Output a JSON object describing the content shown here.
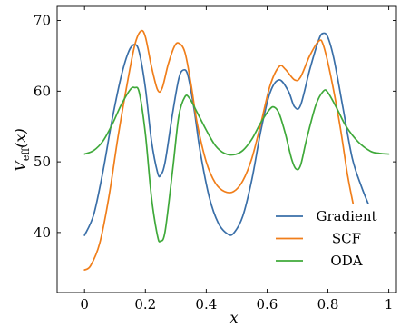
{
  "chart_data": {
    "type": "line",
    "title": "",
    "xlabel": "x",
    "ylabel": "V_eff(x)",
    "ylabel_parts": {
      "main": "V",
      "sub": "eff",
      "arg": "(x)"
    },
    "xlim": [
      -0.09,
      1.025
    ],
    "ylim": [
      31.5,
      72
    ],
    "xticks": [
      0,
      0.2,
      0.4,
      0.6,
      0.8,
      1
    ],
    "xtick_labels": [
      "0",
      "0.2",
      "0.4",
      "0.6",
      "0.8",
      "1"
    ],
    "yticks": [
      40,
      50,
      60,
      70
    ],
    "ytick_labels": [
      "40",
      "50",
      "60",
      "70"
    ],
    "grid": false,
    "legend_position": "bottom-right",
    "series": [
      {
        "name": "Gradient",
        "color": "#3a6fa8",
        "points": [
          [
            0.0,
            39.6
          ],
          [
            0.03,
            42.5
          ],
          [
            0.06,
            48.5
          ],
          [
            0.09,
            55.8
          ],
          [
            0.12,
            62.0
          ],
          [
            0.145,
            65.6
          ],
          [
            0.165,
            66.6
          ],
          [
            0.18,
            65.5
          ],
          [
            0.2,
            60.5
          ],
          [
            0.22,
            53.0
          ],
          [
            0.24,
            48.5
          ],
          [
            0.25,
            48.1
          ],
          [
            0.265,
            50.0
          ],
          [
            0.29,
            57.0
          ],
          [
            0.31,
            61.8
          ],
          [
            0.325,
            63.0
          ],
          [
            0.34,
            62.2
          ],
          [
            0.36,
            57.5
          ],
          [
            0.38,
            51.5
          ],
          [
            0.41,
            45.0
          ],
          [
            0.44,
            41.3
          ],
          [
            0.47,
            39.8
          ],
          [
            0.49,
            39.9
          ],
          [
            0.52,
            42.3
          ],
          [
            0.55,
            47.5
          ],
          [
            0.58,
            54.5
          ],
          [
            0.61,
            59.8
          ],
          [
            0.64,
            61.6
          ],
          [
            0.67,
            60.0
          ],
          [
            0.69,
            57.8
          ],
          [
            0.71,
            58.0
          ],
          [
            0.74,
            63.0
          ],
          [
            0.77,
            67.3
          ],
          [
            0.785,
            68.2
          ],
          [
            0.8,
            67.6
          ],
          [
            0.82,
            64.5
          ],
          [
            0.85,
            57.5
          ],
          [
            0.88,
            50.5
          ],
          [
            0.91,
            46.5
          ],
          [
            0.935,
            43.8
          ]
        ]
      },
      {
        "name": "SCF",
        "color": "#f07e1a",
        "points": [
          [
            0.0,
            34.7
          ],
          [
            0.02,
            35.3
          ],
          [
            0.05,
            38.5
          ],
          [
            0.08,
            45.0
          ],
          [
            0.11,
            53.5
          ],
          [
            0.14,
            61.0
          ],
          [
            0.165,
            66.5
          ],
          [
            0.185,
            68.5
          ],
          [
            0.2,
            67.7
          ],
          [
            0.22,
            63.5
          ],
          [
            0.24,
            60.2
          ],
          [
            0.255,
            60.4
          ],
          [
            0.275,
            63.8
          ],
          [
            0.295,
            66.3
          ],
          [
            0.31,
            66.8
          ],
          [
            0.33,
            65.5
          ],
          [
            0.35,
            61.0
          ],
          [
            0.37,
            55.5
          ],
          [
            0.4,
            50.0
          ],
          [
            0.43,
            47.0
          ],
          [
            0.46,
            45.8
          ],
          [
            0.49,
            45.8
          ],
          [
            0.52,
            47.3
          ],
          [
            0.55,
            50.5
          ],
          [
            0.58,
            55.5
          ],
          [
            0.61,
            60.8
          ],
          [
            0.64,
            63.5
          ],
          [
            0.66,
            63.1
          ],
          [
            0.69,
            61.6
          ],
          [
            0.71,
            62.0
          ],
          [
            0.74,
            65.0
          ],
          [
            0.77,
            67.1
          ],
          [
            0.785,
            66.5
          ],
          [
            0.81,
            62.0
          ],
          [
            0.84,
            55.0
          ],
          [
            0.865,
            48.0
          ],
          [
            0.885,
            43.6
          ]
        ]
      },
      {
        "name": "ODA",
        "color": "#3fa93a",
        "points": [
          [
            0.0,
            51.1
          ],
          [
            0.03,
            51.6
          ],
          [
            0.06,
            52.9
          ],
          [
            0.09,
            55.2
          ],
          [
            0.12,
            58.0
          ],
          [
            0.15,
            60.2
          ],
          [
            0.165,
            60.5
          ],
          [
            0.18,
            59.8
          ],
          [
            0.2,
            54.0
          ],
          [
            0.22,
            45.0
          ],
          [
            0.24,
            39.5
          ],
          [
            0.25,
            38.8
          ],
          [
            0.265,
            40.2
          ],
          [
            0.29,
            49.0
          ],
          [
            0.31,
            56.5
          ],
          [
            0.33,
            59.2
          ],
          [
            0.345,
            59.0
          ],
          [
            0.37,
            57.0
          ],
          [
            0.4,
            54.5
          ],
          [
            0.43,
            52.3
          ],
          [
            0.46,
            51.2
          ],
          [
            0.49,
            51.0
          ],
          [
            0.52,
            51.6
          ],
          [
            0.55,
            53.2
          ],
          [
            0.58,
            55.6
          ],
          [
            0.61,
            57.5
          ],
          [
            0.625,
            57.7
          ],
          [
            0.64,
            56.8
          ],
          [
            0.66,
            54.0
          ],
          [
            0.68,
            50.5
          ],
          [
            0.695,
            49.0
          ],
          [
            0.71,
            49.5
          ],
          [
            0.73,
            53.2
          ],
          [
            0.76,
            58.0
          ],
          [
            0.785,
            60.0
          ],
          [
            0.8,
            59.8
          ],
          [
            0.83,
            57.5
          ],
          [
            0.86,
            55.0
          ],
          [
            0.9,
            52.8
          ],
          [
            0.94,
            51.5
          ],
          [
            0.97,
            51.2
          ],
          [
            1.0,
            51.1
          ]
        ]
      }
    ]
  }
}
